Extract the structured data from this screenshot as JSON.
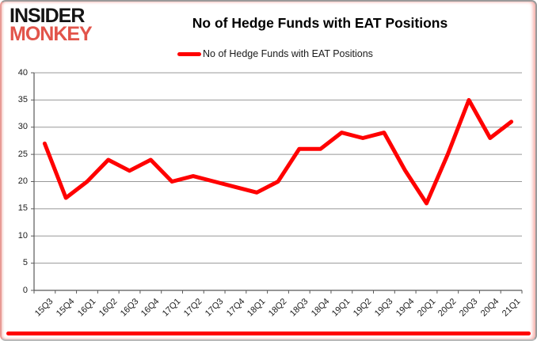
{
  "logo": {
    "line1": "INSIDER",
    "line2": "MONKEY"
  },
  "header": {
    "title": "No of Hedge Funds with EAT Positions"
  },
  "legend": {
    "label": "No of Hedge Funds with EAT Positions"
  },
  "colors": {
    "series_red": "#ff0000",
    "logo_red": "#e2544a",
    "gridline_gray": "#989898",
    "axis_gray": "#595959",
    "bottom_accent_red": "#ff0000"
  },
  "chart_data": {
    "type": "line",
    "title": "No of Hedge Funds with EAT Positions",
    "categories": [
      "15Q3",
      "15Q4",
      "16Q1",
      "16Q2",
      "16Q3",
      "16Q4",
      "17Q1",
      "17Q2",
      "17Q3",
      "17Q4",
      "18Q1",
      "18Q2",
      "18Q3",
      "18Q4",
      "19Q1",
      "19Q2",
      "19Q3",
      "19Q4",
      "20Q1",
      "20Q2",
      "20Q3",
      "20Q4",
      "21Q1"
    ],
    "series": [
      {
        "name": "No of Hedge Funds with EAT Positions",
        "color": "#ff0000",
        "values": [
          27,
          17,
          20,
          24,
          22,
          24,
          20,
          21,
          20,
          19,
          18,
          20,
          26,
          26,
          29,
          28,
          29,
          22,
          16,
          25,
          35,
          28,
          31
        ]
      }
    ],
    "xlabel": "",
    "ylabel": "",
    "ylim": [
      0,
      40
    ],
    "yticks": [
      0,
      5,
      10,
      15,
      20,
      25,
      30,
      35,
      40
    ],
    "grid": true,
    "legend_position": "top-center"
  }
}
